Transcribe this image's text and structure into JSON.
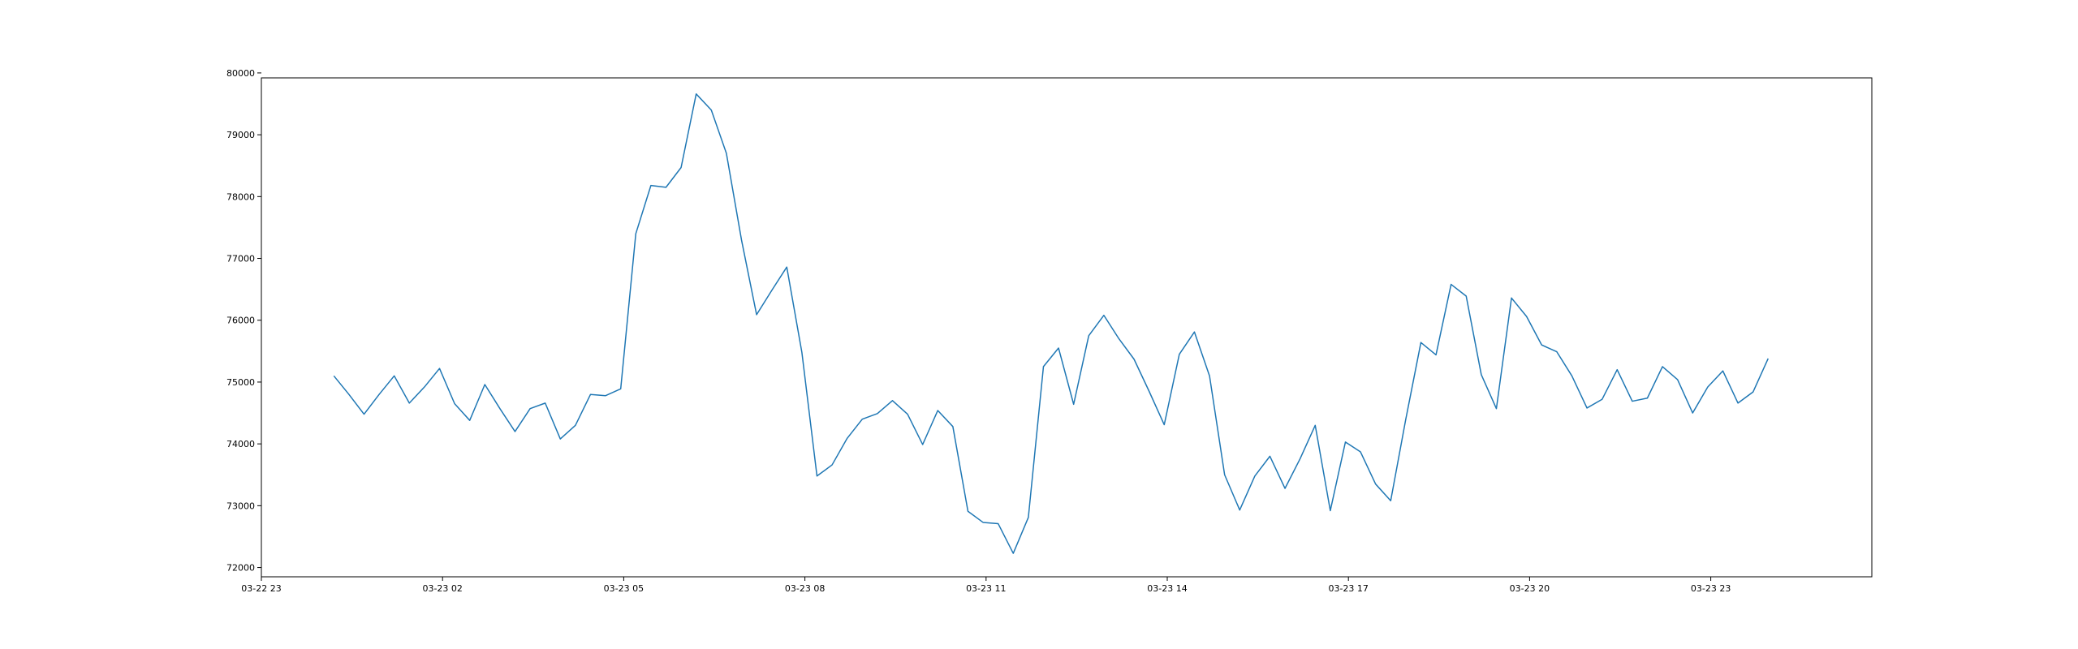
{
  "chart_data": {
    "type": "line",
    "title": "",
    "xlabel": "",
    "ylabel": "",
    "grid": false,
    "legend": "none",
    "x_axis": {
      "range": [
        "03-22 23:00",
        "03-24 01:40"
      ],
      "ticks": [
        {
          "at": "03-22 23:00",
          "label": "03-22 23"
        },
        {
          "at": "03-23 02:00",
          "label": "03-23 02"
        },
        {
          "at": "03-23 05:00",
          "label": "03-23 05"
        },
        {
          "at": "03-23 08:00",
          "label": "03-23 08"
        },
        {
          "at": "03-23 11:00",
          "label": "03-23 11"
        },
        {
          "at": "03-23 14:00",
          "label": "03-23 14"
        },
        {
          "at": "03-23 17:00",
          "label": "03-23 17"
        },
        {
          "at": "03-23 20:00",
          "label": "03-23 20"
        },
        {
          "at": "03-23 23:00",
          "label": "03-23 23"
        }
      ]
    },
    "y_axis": {
      "range": [
        71850,
        79920
      ],
      "ticks": [
        72000,
        73000,
        74000,
        75000,
        76000,
        77000,
        78000,
        79000,
        80000
      ]
    },
    "series": [
      {
        "color": "#1f77b4",
        "points": [
          [
            "03-23 00:12",
            75100
          ],
          [
            "03-23 00:27",
            74800
          ],
          [
            "03-23 00:42",
            74480
          ],
          [
            "03-23 00:57",
            74800
          ],
          [
            "03-23 01:12",
            75100
          ],
          [
            "03-23 01:27",
            74660
          ],
          [
            "03-23 01:42",
            74920
          ],
          [
            "03-23 01:57",
            75220
          ],
          [
            "03-23 02:12",
            74650
          ],
          [
            "03-23 02:27",
            74380
          ],
          [
            "03-23 02:42",
            74960
          ],
          [
            "03-23 02:57",
            74570
          ],
          [
            "03-23 03:12",
            74200
          ],
          [
            "03-23 03:27",
            74570
          ],
          [
            "03-23 03:42",
            74660
          ],
          [
            "03-23 03:57",
            74080
          ],
          [
            "03-23 04:12",
            74300
          ],
          [
            "03-23 04:27",
            74800
          ],
          [
            "03-23 04:42",
            74780
          ],
          [
            "03-23 04:57",
            74890
          ],
          [
            "03-23 05:12",
            77400
          ],
          [
            "03-23 05:27",
            78180
          ],
          [
            "03-23 05:42",
            78150
          ],
          [
            "03-23 05:57",
            78470
          ],
          [
            "03-23 06:12",
            79660
          ],
          [
            "03-23 06:27",
            79400
          ],
          [
            "03-23 06:42",
            78700
          ],
          [
            "03-23 06:57",
            77300
          ],
          [
            "03-23 07:12",
            76090
          ],
          [
            "03-23 07:27",
            76480
          ],
          [
            "03-23 07:42",
            76860
          ],
          [
            "03-23 07:57",
            75480
          ],
          [
            "03-23 08:12",
            73480
          ],
          [
            "03-23 08:27",
            73660
          ],
          [
            "03-23 08:42",
            74090
          ],
          [
            "03-23 08:57",
            74400
          ],
          [
            "03-23 09:12",
            74490
          ],
          [
            "03-23 09:27",
            74700
          ],
          [
            "03-23 09:42",
            74480
          ],
          [
            "03-23 09:57",
            73990
          ],
          [
            "03-23 10:12",
            74540
          ],
          [
            "03-23 10:27",
            74280
          ],
          [
            "03-23 10:42",
            72910
          ],
          [
            "03-23 10:57",
            72730
          ],
          [
            "03-23 11:12",
            72710
          ],
          [
            "03-23 11:27",
            72230
          ],
          [
            "03-23 11:42",
            72810
          ],
          [
            "03-23 11:57",
            75250
          ],
          [
            "03-23 12:12",
            75550
          ],
          [
            "03-23 12:27",
            74640
          ],
          [
            "03-23 12:42",
            75750
          ],
          [
            "03-23 12:57",
            76080
          ],
          [
            "03-23 13:12",
            75700
          ],
          [
            "03-23 13:27",
            75370
          ],
          [
            "03-23 13:42",
            74850
          ],
          [
            "03-23 13:57",
            74310
          ],
          [
            "03-23 14:12",
            75450
          ],
          [
            "03-23 14:27",
            75810
          ],
          [
            "03-23 14:42",
            75100
          ],
          [
            "03-23 14:57",
            73500
          ],
          [
            "03-23 15:12",
            72930
          ],
          [
            "03-23 15:27",
            73480
          ],
          [
            "03-23 15:42",
            73800
          ],
          [
            "03-23 15:57",
            73280
          ],
          [
            "03-23 16:12",
            73760
          ],
          [
            "03-23 16:27",
            74300
          ],
          [
            "03-23 16:42",
            72920
          ],
          [
            "03-23 16:57",
            74030
          ],
          [
            "03-23 17:12",
            73870
          ],
          [
            "03-23 17:27",
            73350
          ],
          [
            "03-23 17:42",
            73080
          ],
          [
            "03-23 17:57",
            74400
          ],
          [
            "03-23 18:12",
            75640
          ],
          [
            "03-23 18:27",
            75440
          ],
          [
            "03-23 18:42",
            76580
          ],
          [
            "03-23 18:57",
            76390
          ],
          [
            "03-23 19:12",
            75120
          ],
          [
            "03-23 19:27",
            74570
          ],
          [
            "03-23 19:42",
            76360
          ],
          [
            "03-23 19:57",
            76060
          ],
          [
            "03-23 20:12",
            75600
          ],
          [
            "03-23 20:27",
            75490
          ],
          [
            "03-23 20:42",
            75100
          ],
          [
            "03-23 20:57",
            74580
          ],
          [
            "03-23 21:12",
            74720
          ],
          [
            "03-23 21:27",
            75200
          ],
          [
            "03-23 21:42",
            74690
          ],
          [
            "03-23 21:57",
            74740
          ],
          [
            "03-23 22:12",
            75250
          ],
          [
            "03-23 22:27",
            75040
          ],
          [
            "03-23 22:42",
            74500
          ],
          [
            "03-23 22:57",
            74920
          ],
          [
            "03-23 23:12",
            75180
          ],
          [
            "03-23 23:27",
            74660
          ],
          [
            "03-23 23:42",
            74840
          ],
          [
            "03-23 23:57",
            75380
          ]
        ]
      }
    ]
  }
}
